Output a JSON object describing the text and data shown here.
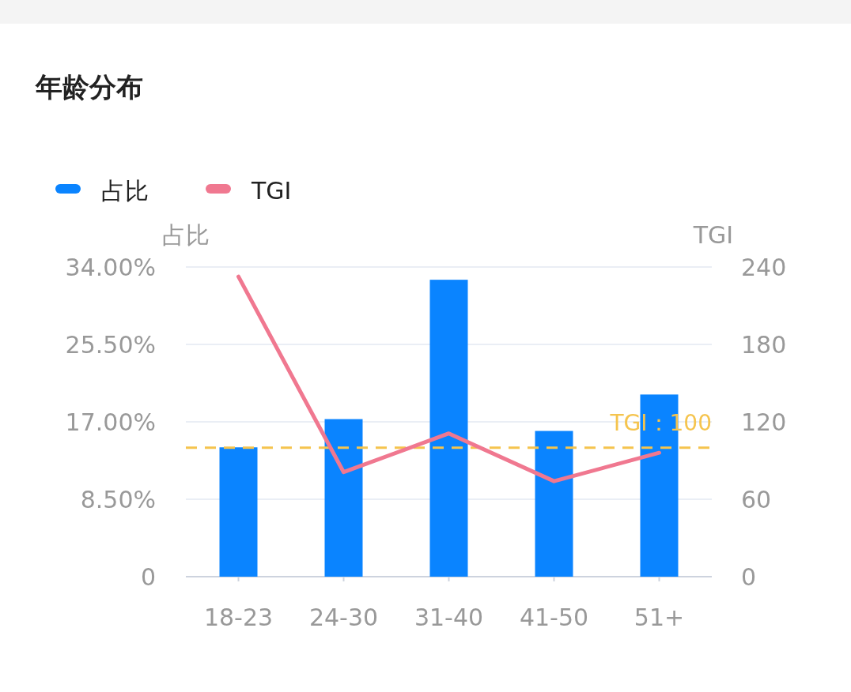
{
  "chart_data": {
    "type": "bar",
    "title": "年龄分布",
    "categories": [
      "18-23",
      "24-30",
      "31-40",
      "41-50",
      "51+"
    ],
    "series": [
      {
        "name": "占比",
        "color": "#0a84ff",
        "values": [
          14.2,
          17.3,
          32.6,
          16.0,
          20.0
        ]
      },
      {
        "name": "TGI",
        "type": "line",
        "axis": "y2",
        "color": "#f07890",
        "values": [
          232.6,
          81,
          111,
          74,
          96
        ]
      }
    ],
    "ylabel": "占比",
    "y2label": "TGI",
    "ylim": [
      0,
      34
    ],
    "yticks": [
      0,
      {
        "value": 8.5,
        "label": "8.50%"
      },
      {
        "value": 17,
        "label": "17.00%"
      },
      {
        "value": 25.5,
        "label": "25.50%"
      },
      {
        "value": 34,
        "label": "34.00%"
      }
    ],
    "y2lim": [
      0,
      240
    ],
    "y2ticks": [
      0,
      60,
      120,
      180,
      240
    ],
    "grid": "y",
    "legend": "top left",
    "ref_lines": [
      {
        "axis": "y2",
        "value": 100,
        "label": "TGI：100",
        "color": "#f5c44e",
        "line_style": "dashed"
      }
    ]
  }
}
